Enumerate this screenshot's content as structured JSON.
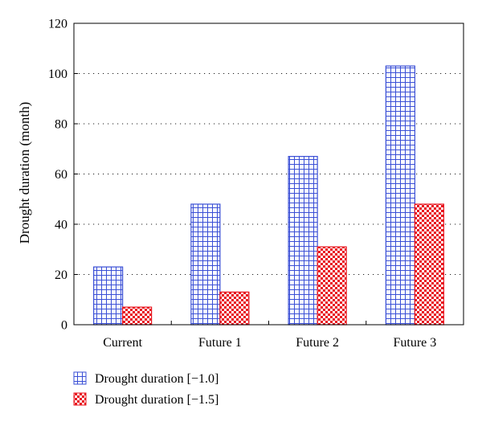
{
  "chart_data": {
    "type": "bar",
    "title": "",
    "xlabel": "",
    "ylabel": "Drought duration (month)",
    "categories": [
      "Current",
      "Future 1",
      "Future 2",
      "Future 3"
    ],
    "series": [
      {
        "name": "Drought duration [−1.0]",
        "values": [
          23,
          48,
          67,
          103
        ],
        "color": "#3a4fd6",
        "pattern": "grid"
      },
      {
        "name": "Drought duration [−1.5]",
        "values": [
          7,
          13,
          31,
          48
        ],
        "color": "#e8141e",
        "pattern": "checker"
      }
    ],
    "ylim": [
      0,
      120
    ],
    "yticks": [
      0,
      20,
      40,
      60,
      80,
      100,
      120
    ],
    "grid": "dotted horizontal",
    "legend": "bottom-left"
  }
}
